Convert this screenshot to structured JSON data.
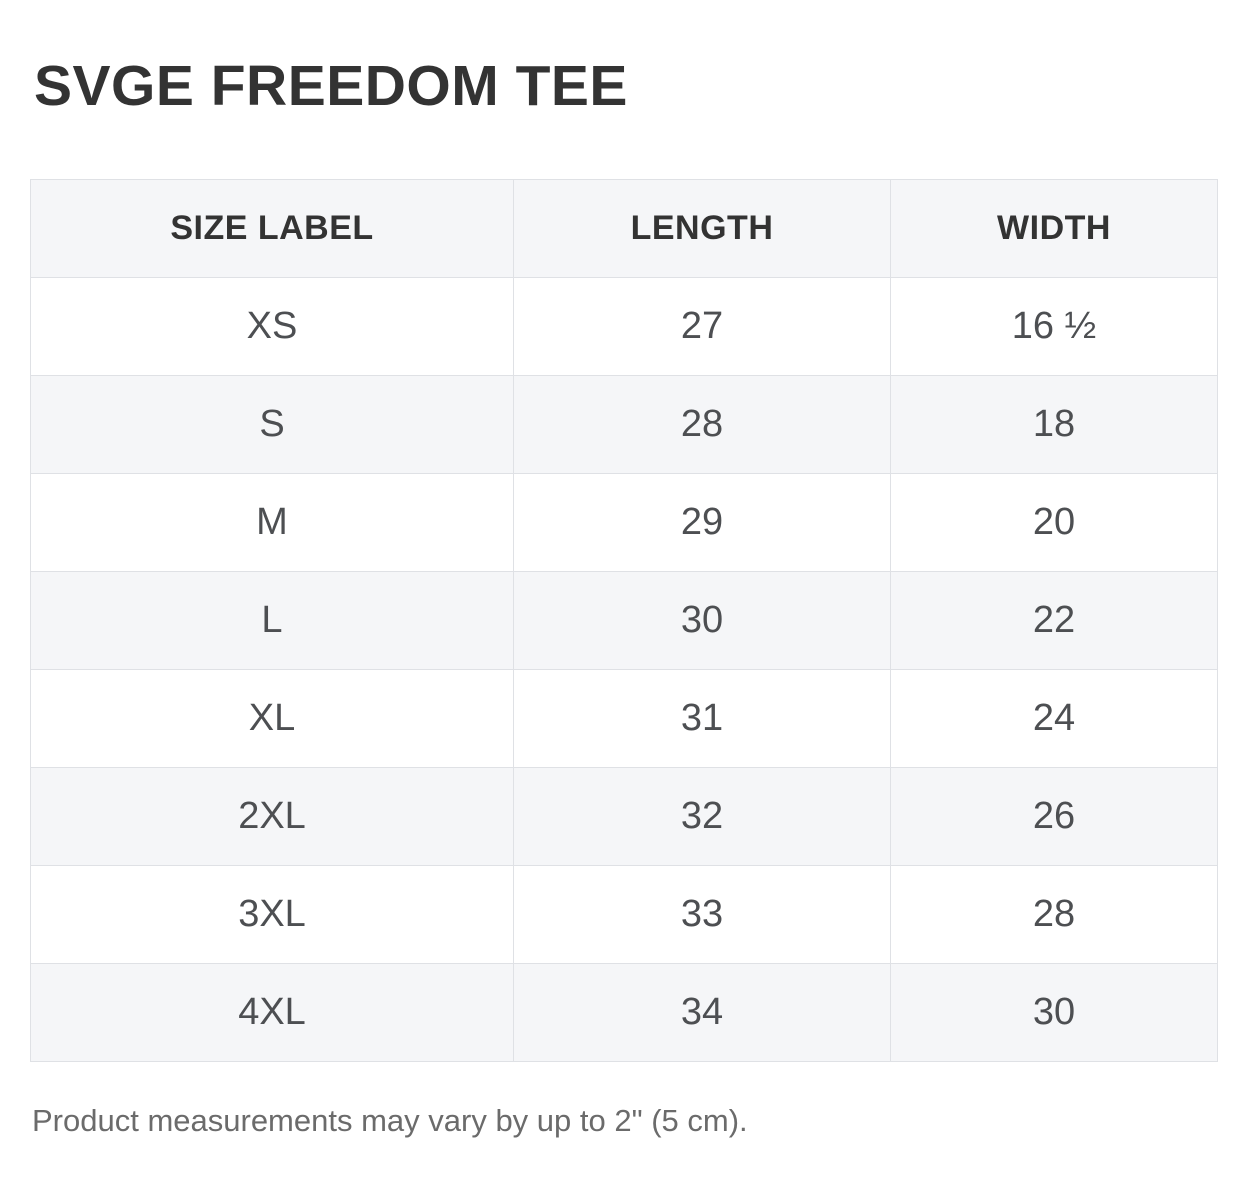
{
  "page": {
    "title": "SVGE FREEDOM TEE",
    "note": "Product measurements may vary by up to 2\" (5 cm)."
  },
  "size_chart": {
    "columns": {
      "size_label": "SIZE LABEL",
      "length": "LENGTH",
      "width": "WIDTH"
    },
    "rows": [
      {
        "size": "XS",
        "length": "27",
        "width": "16 ½"
      },
      {
        "size": "S",
        "length": "28",
        "width": "18"
      },
      {
        "size": "M",
        "length": "29",
        "width": "20"
      },
      {
        "size": "L",
        "length": "30",
        "width": "22"
      },
      {
        "size": "XL",
        "length": "31",
        "width": "24"
      },
      {
        "size": "2XL",
        "length": "32",
        "width": "26"
      },
      {
        "size": "3XL",
        "length": "33",
        "width": "28"
      },
      {
        "size": "4XL",
        "length": "34",
        "width": "30"
      }
    ],
    "colors": {
      "stripe_background": "#f5f6f8",
      "border": "#dfe1e5",
      "header_text": "#333333",
      "cell_text": "#4d4f52",
      "title_text": "#333333",
      "note_text": "#6b6b6b"
    }
  }
}
